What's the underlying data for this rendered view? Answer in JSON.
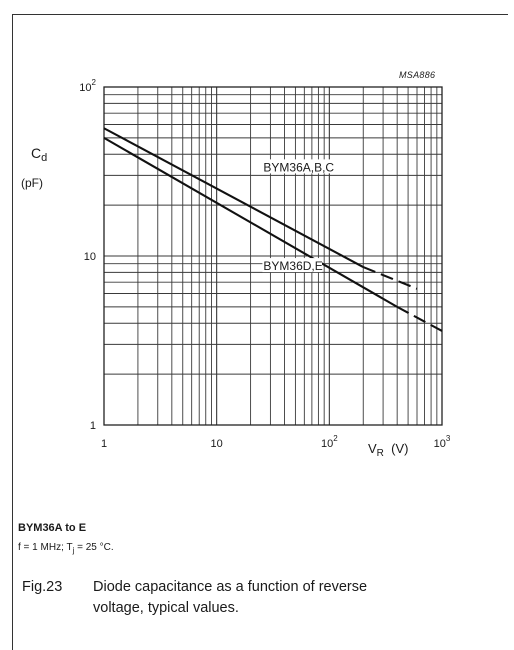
{
  "figure_ref": "MSA886",
  "chart_data": {
    "type": "line",
    "x_scale": "log",
    "y_scale": "log",
    "xlim": [
      1,
      1000
    ],
    "ylim": [
      1,
      100
    ],
    "ylabel_main": "C",
    "ylabel_sub": "d",
    "ylabel_unit": "(pF)",
    "xlabel_main": "V",
    "xlabel_sub": "R",
    "xlabel_unit": "(V)",
    "y_ticks": [
      {
        "value": 1,
        "mant": "1",
        "exp": ""
      },
      {
        "value": 10,
        "mant": "10",
        "exp": ""
      },
      {
        "value": 100,
        "mant": "10",
        "exp": "2"
      }
    ],
    "x_ticks": [
      {
        "value": 1,
        "mant": "1",
        "exp": ""
      },
      {
        "value": 10,
        "mant": "10",
        "exp": ""
      },
      {
        "value": 100,
        "mant": "10",
        "exp": "2"
      },
      {
        "value": 1000,
        "mant": "10",
        "exp": "3"
      }
    ],
    "grid": true,
    "series": [
      {
        "name": "BYM36A,B,C",
        "solid": [
          [
            1,
            57
          ],
          [
            200,
            8.6
          ]
        ],
        "dashed": [
          [
            200,
            8.6
          ],
          [
            600,
            6.4
          ]
        ],
        "label_at": [
          26,
          33
        ]
      },
      {
        "name": "BYM36D,E",
        "solid": [
          [
            1,
            50
          ],
          [
            400,
            5
          ]
        ],
        "dashed": [
          [
            400,
            5
          ],
          [
            1000,
            3.6
          ]
        ],
        "label_at": [
          26,
          8.6
        ]
      }
    ]
  },
  "notes": {
    "title": "BYM36A to E",
    "condition_pre": "f = 1 MHz; T",
    "condition_sub": "j",
    "condition_post": " = 25 °C."
  },
  "caption": {
    "fig": "Fig.23",
    "line1": "Diode capacitance as a function of reverse",
    "line2": "voltage, typical values."
  }
}
